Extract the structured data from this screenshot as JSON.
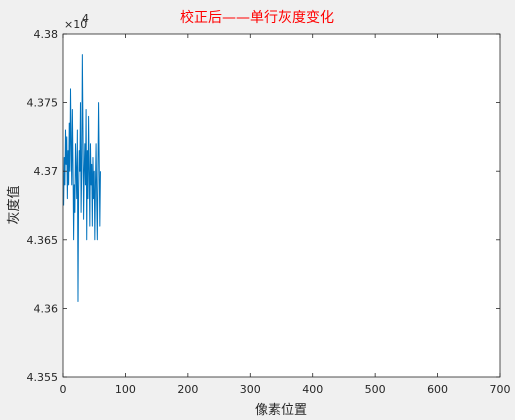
{
  "chart_data": {
    "type": "line",
    "title": "校正后——单行灰度变化",
    "xlabel": "像素位置",
    "ylabel": "灰度值",
    "xlim": [
      0,
      700
    ],
    "ylim": [
      43550,
      43800
    ],
    "x_ticks": [
      0,
      100,
      200,
      300,
      400,
      500,
      600,
      700
    ],
    "x_tick_labels": [
      "0",
      "100",
      "200",
      "300",
      "400",
      "500",
      "600",
      "700"
    ],
    "y_ticks": [
      43550,
      43600,
      43650,
      43700,
      43750,
      43800
    ],
    "y_tick_labels": [
      "4.355",
      "4.36",
      "4.365",
      "4.37",
      "4.375",
      "4.38"
    ],
    "y_exponent_label": "×10",
    "y_exponent": "4",
    "grid": false,
    "colors": {
      "series": "#0072bd",
      "title": "#ff0000",
      "plot_bg": "#ffffff",
      "figure_bg": "#f0f0f0",
      "axis": "#262626"
    },
    "series": [
      {
        "x_start": 1,
        "x_step": 1,
        "values": [
          43675,
          43710,
          43690,
          43730,
          43705,
          43725,
          43680,
          43715,
          43690,
          43735,
          43700,
          43760,
          43720,
          43690,
          43745,
          43705,
          43650,
          43690,
          43670,
          43720,
          43700,
          43680,
          43730,
          43605,
          43685,
          43715,
          43700,
          43750,
          43670,
          43700,
          43785,
          43730,
          43665,
          43700,
          43720,
          43690,
          43745,
          43650,
          43715,
          43680,
          43740,
          43700,
          43660,
          43720,
          43690,
          43705,
          43660,
          43710,
          43680,
          43700,
          43650,
          43690,
          43720,
          43680,
          43650,
          43700,
          43750,
          43705,
          43660,
          43700
        ]
      }
    ]
  }
}
